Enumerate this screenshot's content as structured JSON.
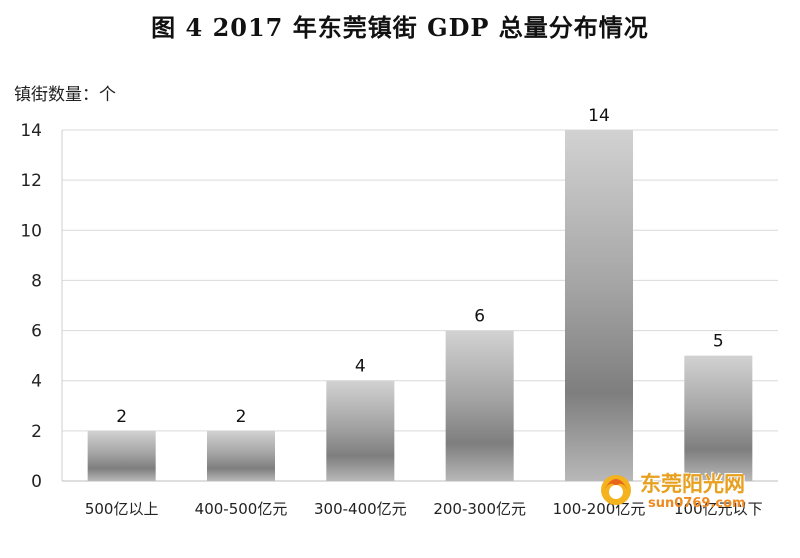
{
  "title": "图 4    2017 年东莞镇街 GDP 总量分布情况",
  "chart_data": {
    "type": "bar",
    "title": "图 4    2017 年东莞镇街 GDP 总量分布情况",
    "ylabel": "镇街数量：个",
    "xlabel": "",
    "categories": [
      "500亿以上",
      "400-500亿元",
      "300-400亿元",
      "200-300亿元",
      "100-200亿元",
      "100亿元以下"
    ],
    "values": [
      2,
      2,
      4,
      6,
      14,
      5
    ],
    "data_labels": [
      "2",
      "2",
      "4",
      "6",
      "14",
      "5"
    ],
    "ylim": [
      0,
      14
    ],
    "yticks": [
      0,
      2,
      4,
      6,
      8,
      10,
      12,
      14
    ],
    "grid": true,
    "legend": "none"
  },
  "watermark": {
    "name": "东莞阳光网",
    "url": "sun0769.com",
    "icon": "sun-flame-icon",
    "color": "#e8a020"
  }
}
